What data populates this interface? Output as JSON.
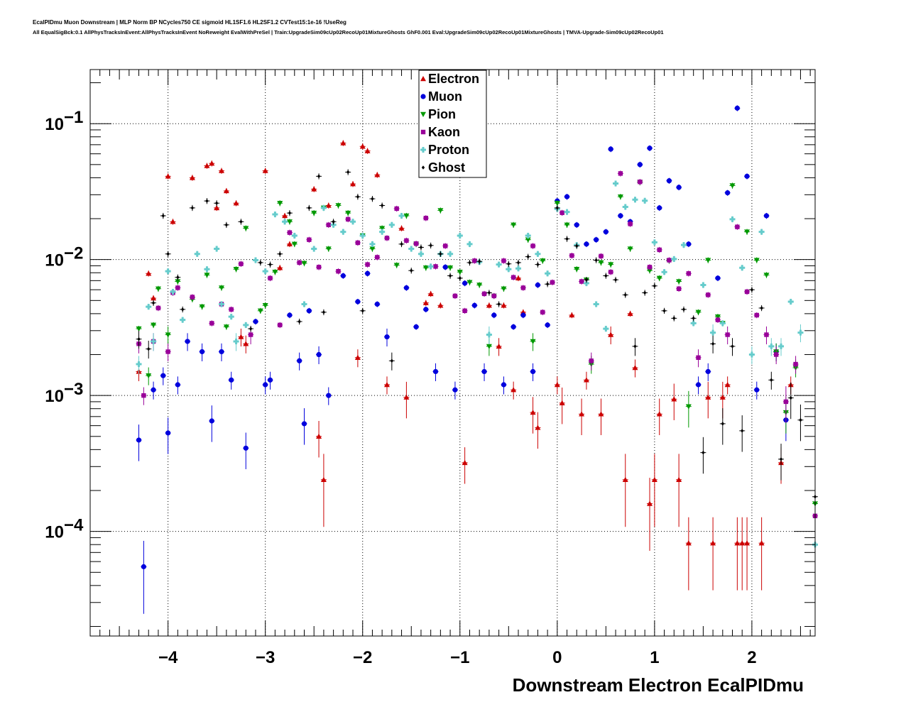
{
  "header": {
    "title_line1": "EcalPIDmu Muon Downstream | MLP Norm BP NCycles750 CE sigmoid HL1SF1.6 HL2SF1.2 CVTest15:1e-16 !UseReg",
    "title_line2": "All EqualSigBck:0.1 AllPhysTracksInEvent:AllPhysTracksInEvent NoReweight EvalWithPreSel | Train:UpgradeSim09cUp02RecoUp01MixtureGhosts GhF0.001 Eval:UpgradeSim09cUp02RecoUp01MixtureGhosts | TMVA-Upgrade-Sim09cUp02RecoUp01"
  },
  "chart_data": {
    "type": "scatter",
    "title": "",
    "xlabel": "Downstream Electron EcalPIDmu",
    "ylabel": "",
    "xlim": [
      -4.8,
      2.65
    ],
    "ylim": [
      1.7e-05,
      0.25
    ],
    "yscale": "log",
    "grid": true,
    "legend_position": "top-center",
    "x_ticks": [
      {
        "value": -4,
        "label": "−4"
      },
      {
        "value": -3,
        "label": "−3"
      },
      {
        "value": -2,
        "label": "−2"
      },
      {
        "value": -1,
        "label": "−1"
      },
      {
        "value": 0,
        "label": "0"
      },
      {
        "value": 1,
        "label": "1"
      },
      {
        "value": 2,
        "label": "2"
      }
    ],
    "y_ticks": [
      {
        "value": 0.1,
        "label": "10",
        "exp": "−1"
      },
      {
        "value": 0.01,
        "label": "10",
        "exp": "−2"
      },
      {
        "value": 0.001,
        "label": "10",
        "exp": "−3"
      },
      {
        "value": 0.0001,
        "label": "10",
        "exp": "−4"
      }
    ],
    "series": [
      {
        "name": "Electron",
        "marker": "triangle-up",
        "color": "#cc0000",
        "x": [
          -4.3,
          -4.2,
          -4.15,
          -4.0,
          -3.95,
          -3.75,
          -3.6,
          -3.55,
          -3.5,
          -3.45,
          -3.4,
          -3.3,
          -3.25,
          -3.2,
          -3.0,
          -2.85,
          -2.8,
          -2.75,
          -2.5,
          -2.45,
          -2.4,
          -2.35,
          -2.2,
          -2.1,
          -2.05,
          -2.0,
          -1.95,
          -1.85,
          -1.75,
          -1.6,
          -1.55,
          -1.35,
          -1.3,
          -1.2,
          -0.95,
          -0.7,
          -0.6,
          -0.55,
          -0.45,
          -0.4,
          -0.35,
          -0.25,
          -0.2,
          0.0,
          0.05,
          0.15,
          0.25,
          0.3,
          0.45,
          0.55,
          0.7,
          0.75,
          0.8,
          0.95,
          1.0,
          1.05,
          1.2,
          1.25,
          1.35,
          1.55,
          1.6,
          1.7,
          1.75,
          1.85,
          1.9,
          1.95,
          2.1,
          2.3,
          2.4
        ],
        "y": [
          0.0015,
          0.0079,
          0.0052,
          0.041,
          0.019,
          0.04,
          0.049,
          0.051,
          0.024,
          0.045,
          0.032,
          0.026,
          0.0027,
          0.0024,
          0.045,
          0.0087,
          0.021,
          0.013,
          0.033,
          0.0005,
          0.00024,
          0.025,
          0.072,
          0.036,
          0.0019,
          0.068,
          0.063,
          0.042,
          0.0012,
          0.017,
          0.00097,
          0.0048,
          0.0056,
          0.0046,
          0.00032,
          0.0046,
          0.0023,
          0.0046,
          0.0011,
          0.0073,
          0.0041,
          0.00075,
          0.00058,
          0.0012,
          0.00088,
          0.0039,
          0.00073,
          0.0013,
          0.00073,
          0.0028,
          0.00024,
          0.004,
          0.0016,
          0.00016,
          0.00024,
          0.00073,
          0.00094,
          0.00024,
          8.2e-05,
          0.00097,
          8.2e-05,
          0.00097,
          0.0012,
          8.2e-05,
          8.2e-05,
          8.2e-05,
          8.2e-05,
          0.00032,
          0.0012
        ]
      },
      {
        "name": "Muon",
        "marker": "circle",
        "color": "#0000dd",
        "x": [
          -4.3,
          -4.25,
          -4.15,
          -4.05,
          -4.0,
          -3.9,
          -3.8,
          -3.65,
          -3.55,
          -3.45,
          -3.35,
          -3.2,
          -3.1,
          -3.0,
          -2.95,
          -2.75,
          -2.65,
          -2.6,
          -2.55,
          -2.45,
          -2.35,
          -2.2,
          -2.05,
          -1.95,
          -1.85,
          -1.75,
          -1.55,
          -1.45,
          -1.35,
          -1.25,
          -1.15,
          -1.05,
          -0.95,
          -0.85,
          -0.75,
          -0.65,
          -0.55,
          -0.45,
          -0.35,
          -0.25,
          -0.2,
          -0.1,
          0.0,
          0.1,
          0.2,
          0.3,
          0.4,
          0.5,
          0.55,
          0.65,
          0.75,
          0.85,
          0.95,
          1.05,
          1.15,
          1.25,
          1.35,
          1.45,
          1.55,
          1.65,
          1.75,
          1.85,
          1.95,
          2.05,
          2.15,
          2.25,
          2.35
        ],
        "y": [
          0.00047,
          5.5e-05,
          0.0011,
          0.0014,
          0.00053,
          0.0012,
          0.0025,
          0.0021,
          0.00065,
          0.0021,
          0.0013,
          0.00041,
          0.0035,
          0.0012,
          0.0013,
          0.0039,
          0.0018,
          0.00062,
          0.0042,
          0.002,
          0.001,
          0.0076,
          0.0049,
          0.0079,
          0.0047,
          0.0027,
          0.0062,
          0.0032,
          0.0043,
          0.0015,
          0.0088,
          0.0011,
          0.0067,
          0.0046,
          0.0015,
          0.0039,
          0.0012,
          0.0032,
          0.0039,
          0.0015,
          0.0065,
          0.0033,
          0.027,
          0.029,
          0.018,
          0.013,
          0.014,
          0.016,
          0.065,
          0.021,
          0.019,
          0.05,
          0.066,
          0.024,
          0.038,
          0.034,
          0.013,
          0.0012,
          0.0015,
          0.0073,
          0.031,
          0.13,
          0.041,
          0.0011,
          0.021,
          0.0021,
          0.00066
        ]
      },
      {
        "name": "Pion",
        "marker": "triangle-down",
        "color": "#009900",
        "x": [
          -4.3,
          -4.2,
          -4.15,
          -4.1,
          -4.0,
          -3.9,
          -3.75,
          -3.65,
          -3.6,
          -3.45,
          -3.4,
          -3.3,
          -3.2,
          -3.05,
          -3.0,
          -2.9,
          -2.85,
          -2.75,
          -2.7,
          -2.6,
          -2.5,
          -2.4,
          -2.35,
          -2.25,
          -2.15,
          -2.0,
          -1.9,
          -1.8,
          -1.65,
          -1.55,
          -1.45,
          -1.35,
          -1.2,
          -1.1,
          -1.0,
          -0.9,
          -0.8,
          -0.7,
          -0.65,
          -0.55,
          -0.45,
          -0.3,
          -0.25,
          -0.15,
          0.0,
          0.1,
          0.2,
          0.3,
          0.35,
          0.45,
          0.55,
          0.65,
          0.75,
          0.85,
          0.95,
          1.05,
          1.15,
          1.25,
          1.35,
          1.45,
          1.55,
          1.65,
          1.7,
          1.8,
          1.95,
          2.05,
          2.15,
          2.25,
          2.35,
          2.45,
          2.65
        ],
        "y": [
          0.0031,
          0.0014,
          0.0033,
          0.0061,
          0.0028,
          0.0069,
          0.0051,
          0.0045,
          0.0077,
          0.0062,
          0.0032,
          0.0085,
          0.017,
          0.0042,
          0.0046,
          0.0081,
          0.026,
          0.019,
          0.013,
          0.0094,
          0.022,
          0.024,
          0.012,
          0.025,
          0.022,
          0.015,
          0.012,
          0.017,
          0.0091,
          0.021,
          0.013,
          0.0087,
          0.023,
          0.0087,
          0.0081,
          0.0068,
          0.0065,
          0.0023,
          0.0054,
          0.0061,
          0.018,
          0.014,
          0.0025,
          0.0098,
          0.026,
          0.018,
          0.0085,
          0.0071,
          0.0017,
          0.0095,
          0.0092,
          0.029,
          0.012,
          0.037,
          0.0083,
          0.0073,
          0.0098,
          0.0069,
          0.00083,
          0.0041,
          0.0099,
          0.0038,
          0.0034,
          0.035,
          0.016,
          0.0099,
          0.0077,
          0.0021,
          0.00075,
          0.0016,
          0.00016
        ]
      },
      {
        "name": "Kaon",
        "marker": "square",
        "color": "#990099",
        "x": [
          -4.3,
          -4.25,
          -4.15,
          -4.1,
          -4.0,
          -3.95,
          -3.9,
          -3.75,
          -3.55,
          -3.45,
          -3.35,
          -3.25,
          -3.15,
          -2.95,
          -2.85,
          -2.75,
          -2.65,
          -2.55,
          -2.45,
          -2.35,
          -2.25,
          -2.15,
          -2.05,
          -1.95,
          -1.85,
          -1.75,
          -1.65,
          -1.55,
          -1.45,
          -1.35,
          -1.25,
          -1.15,
          -1.05,
          -0.95,
          -0.85,
          -0.75,
          -0.65,
          -0.55,
          -0.45,
          -0.35,
          -0.25,
          -0.15,
          -0.05,
          0.05,
          0.15,
          0.25,
          0.35,
          0.45,
          0.55,
          0.65,
          0.75,
          0.85,
          0.95,
          1.05,
          1.15,
          1.25,
          1.35,
          1.45,
          1.55,
          1.65,
          1.75,
          1.85,
          1.95,
          2.05,
          2.15,
          2.25,
          2.35,
          2.45,
          2.65
        ],
        "y": [
          0.0024,
          0.001,
          0.0025,
          0.0044,
          0.0021,
          0.0057,
          0.0062,
          0.0053,
          0.0034,
          0.0047,
          0.0043,
          0.0093,
          0.0028,
          0.0073,
          0.0033,
          0.0158,
          0.0095,
          0.014,
          0.0088,
          0.018,
          0.0082,
          0.0198,
          0.0133,
          0.0092,
          0.0104,
          0.0144,
          0.0237,
          0.0138,
          0.0131,
          0.0202,
          0.0089,
          0.0126,
          0.0054,
          0.0042,
          0.0098,
          0.0056,
          0.0054,
          0.0098,
          0.0074,
          0.0062,
          0.0126,
          0.0041,
          0.0068,
          0.0221,
          0.0107,
          0.0069,
          0.0018,
          0.0106,
          0.0081,
          0.043,
          0.0183,
          0.0373,
          0.0088,
          0.0118,
          0.0099,
          0.0061,
          0.0079,
          0.0019,
          0.0055,
          0.0036,
          0.0028,
          0.0174,
          0.0058,
          0.0039,
          0.0028,
          0.002,
          0.0009,
          0.0017,
          0.00013
        ]
      },
      {
        "name": "Proton",
        "marker": "cross",
        "color": "#66cccc",
        "x": [
          -4.3,
          -4.2,
          -4.15,
          -4.0,
          -3.95,
          -3.85,
          -3.7,
          -3.6,
          -3.5,
          -3.45,
          -3.35,
          -3.3,
          -3.2,
          -3.1,
          -3.0,
          -2.9,
          -2.8,
          -2.7,
          -2.6,
          -2.5,
          -2.4,
          -2.3,
          -2.2,
          -2.1,
          -2.0,
          -1.9,
          -1.8,
          -1.7,
          -1.6,
          -1.5,
          -1.4,
          -1.3,
          -1.2,
          -1.1,
          -1.0,
          -0.9,
          -0.8,
          -0.7,
          -0.6,
          -0.5,
          -0.4,
          -0.3,
          -0.2,
          -0.1,
          0.0,
          0.1,
          0.2,
          0.3,
          0.4,
          0.5,
          0.6,
          0.7,
          0.8,
          0.9,
          1.0,
          1.1,
          1.2,
          1.3,
          1.4,
          1.5,
          1.6,
          1.7,
          1.8,
          1.9,
          2.0,
          2.1,
          2.2,
          2.3,
          2.4,
          2.5,
          2.65
        ],
        "y": [
          0.0017,
          0.0045,
          0.0025,
          0.0082,
          0.0058,
          0.0036,
          0.011,
          0.0085,
          0.012,
          0.0047,
          0.0038,
          0.0025,
          0.0033,
          0.0099,
          0.0082,
          0.0215,
          0.019,
          0.015,
          0.0047,
          0.012,
          0.024,
          0.018,
          0.016,
          0.019,
          0.015,
          0.013,
          0.016,
          0.018,
          0.021,
          0.012,
          0.011,
          0.0089,
          0.011,
          0.011,
          0.015,
          0.013,
          0.0096,
          0.0028,
          0.0092,
          0.0085,
          0.0086,
          0.015,
          0.011,
          0.0079,
          0.0236,
          0.0224,
          0.0128,
          0.0067,
          0.0047,
          0.0031,
          0.0363,
          0.0244,
          0.0276,
          0.0271,
          0.0134,
          0.0081,
          0.0101,
          0.0128,
          0.0034,
          0.0065,
          0.0029,
          0.0034,
          0.0198,
          0.0087,
          0.002,
          0.016,
          0.0023,
          0.0023,
          0.0049,
          0.0029,
          8e-05
        ]
      },
      {
        "name": "Ghost",
        "marker": "diamond",
        "color": "#000000",
        "x": [
          -4.3,
          -4.2,
          -4.15,
          -4.05,
          -4.0,
          -3.9,
          -3.85,
          -3.75,
          -3.6,
          -3.5,
          -3.4,
          -3.25,
          -3.15,
          -3.05,
          -2.95,
          -2.85,
          -2.75,
          -2.65,
          -2.55,
          -2.45,
          -2.4,
          -2.3,
          -2.15,
          -2.05,
          -2.0,
          -1.9,
          -1.8,
          -1.7,
          -1.6,
          -1.5,
          -1.4,
          -1.3,
          -1.2,
          -1.1,
          -1.0,
          -0.9,
          -0.8,
          -0.7,
          -0.6,
          -0.5,
          -0.4,
          -0.3,
          -0.2,
          -0.1,
          0.0,
          0.1,
          0.2,
          0.3,
          0.4,
          0.5,
          0.6,
          0.7,
          0.8,
          0.9,
          1.0,
          1.1,
          1.2,
          1.3,
          1.4,
          1.5,
          1.6,
          1.7,
          1.8,
          1.9,
          2.0,
          2.1,
          2.2,
          2.3,
          2.4,
          2.5,
          2.65
        ],
        "y": [
          0.0026,
          0.0022,
          0.0048,
          0.021,
          0.011,
          0.0074,
          0.0043,
          0.024,
          0.027,
          0.026,
          0.018,
          0.019,
          0.0031,
          0.0095,
          0.0092,
          0.011,
          0.022,
          0.0035,
          0.024,
          0.041,
          0.0041,
          0.019,
          0.044,
          0.029,
          0.0042,
          0.028,
          0.025,
          0.0018,
          0.013,
          0.0083,
          0.0123,
          0.0127,
          0.011,
          0.0076,
          0.0073,
          0.0095,
          0.0097,
          0.0057,
          0.0047,
          0.0093,
          0.0095,
          0.0105,
          0.0092,
          0.0066,
          0.024,
          0.0142,
          0.0126,
          0.0071,
          0.0099,
          0.0076,
          0.0071,
          0.0055,
          0.0023,
          0.0057,
          0.0064,
          0.0042,
          0.0037,
          0.0043,
          0.0037,
          0.00038,
          0.0024,
          0.00062,
          0.0023,
          0.00055,
          0.006,
          0.0044,
          0.0013,
          0.00034,
          0.00096,
          0.00066,
          0.00018
        ]
      }
    ]
  }
}
